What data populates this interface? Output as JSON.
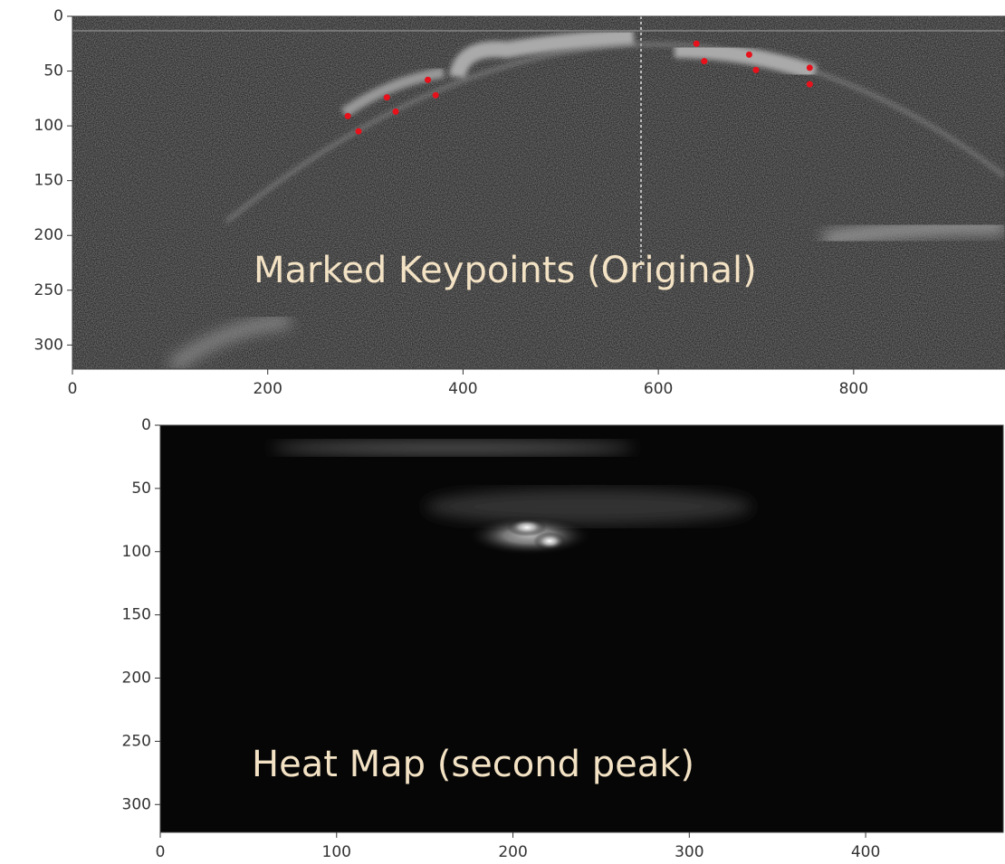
{
  "chart_data": [
    {
      "type": "scatter",
      "annotation": "Marked Keypoints (Original)",
      "xlim": [
        0,
        955
      ],
      "ylim": [
        322,
        0
      ],
      "xticks": [
        0,
        200,
        400,
        600,
        800
      ],
      "yticks": [
        0,
        50,
        100,
        150,
        200,
        250,
        300
      ],
      "series": [
        {
          "color": "#e8101a",
          "x": [
            282,
            293,
            322,
            331,
            364,
            372,
            639,
            647,
            693,
            700,
            755,
            755
          ],
          "values": [
            91,
            105,
            74,
            87,
            58,
            72,
            25,
            41,
            35,
            49,
            47,
            62
          ]
        }
      ]
    },
    {
      "type": "image",
      "annotation": "Heat Map (second peak)",
      "xlim": [
        0,
        478
      ],
      "ylim": [
        322,
        0
      ],
      "xticks": [
        0,
        100,
        200,
        300,
        400
      ],
      "yticks": [
        0,
        50,
        100,
        150,
        200,
        250,
        300
      ]
    }
  ]
}
